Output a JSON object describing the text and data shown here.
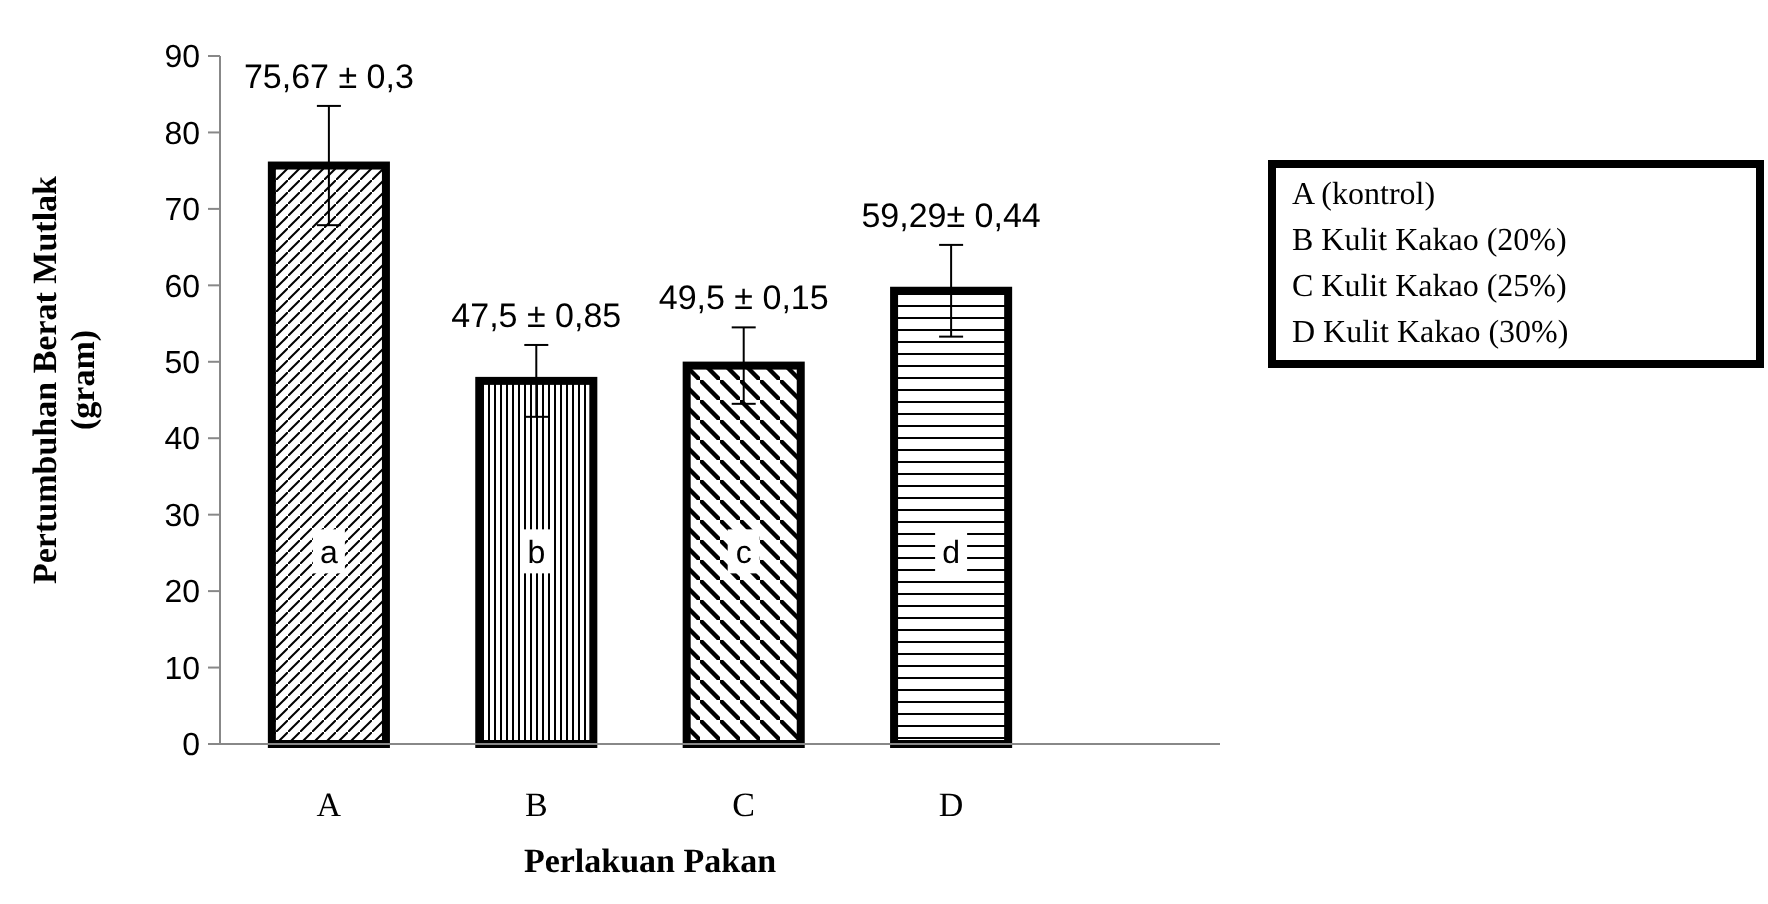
{
  "chart_data": {
    "type": "bar",
    "xlabel": "Perlakuan Pakan",
    "ylabel": "Pertumbuhan  Berat Mutlak\n(gram)",
    "categories": [
      "A",
      "B",
      "C",
      "D"
    ],
    "values": [
      75.67,
      47.5,
      49.5,
      59.29
    ],
    "errors": [
      7.8,
      4.7,
      5,
      6
    ],
    "value_labels": [
      "75,67 ± 0,3",
      "47,5 ± 0,85",
      "49,5 ± 0,15",
      "59,29± 0,44"
    ],
    "color": "#000000",
    "ylim": [
      0,
      90
    ],
    "yticks": [
      0,
      10,
      20,
      30,
      40,
      50,
      60,
      70,
      80,
      90
    ],
    "grid": false,
    "annotations": [
      "a",
      "b",
      "c",
      "d",
      "A  (kontrol)",
      "B   Kulit  Kakao (20%)",
      "C   Kulit  Kakao (25%)",
      "D   Kulit  Kakao (30%)"
    ]
  }
}
